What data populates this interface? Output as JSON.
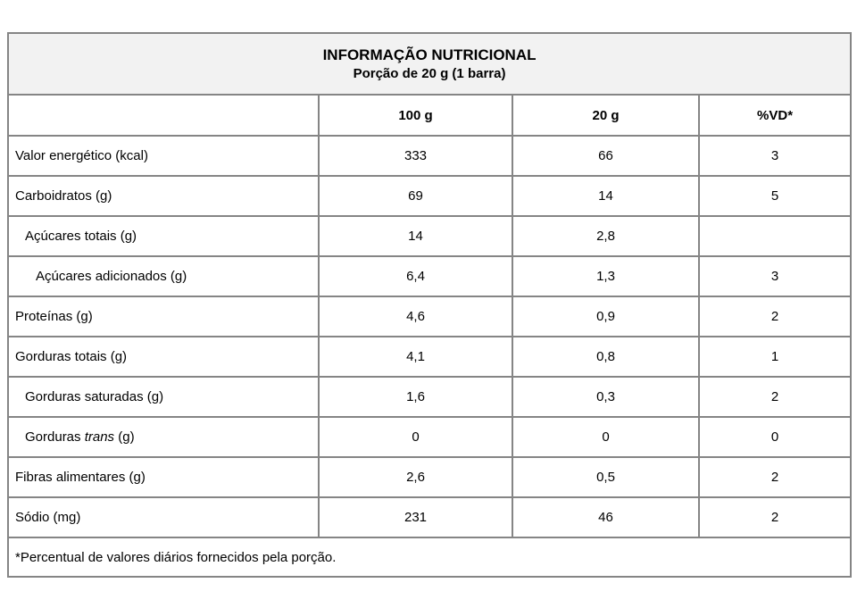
{
  "table": {
    "title": "INFORMAÇÃO NUTRICIONAL",
    "subtitle": "Porção de 20 g (1 barra)",
    "columns": [
      "",
      "100 g",
      "20 g",
      "%VD*"
    ],
    "rows": [
      {
        "label_parts": [
          {
            "text": "Valor energético (kcal)",
            "italic": false
          }
        ],
        "indent": 0,
        "values": [
          "333",
          "66",
          "3"
        ]
      },
      {
        "label_parts": [
          {
            "text": "Carboidratos (g)",
            "italic": false
          }
        ],
        "indent": 0,
        "values": [
          "69",
          "14",
          "5"
        ]
      },
      {
        "label_parts": [
          {
            "text": "Açúcares totais (g)",
            "italic": false
          }
        ],
        "indent": 1,
        "values": [
          "14",
          "2,8",
          ""
        ]
      },
      {
        "label_parts": [
          {
            "text": "Açúcares adicionados (g)",
            "italic": false
          }
        ],
        "indent": 2,
        "values": [
          "6,4",
          "1,3",
          "3"
        ]
      },
      {
        "label_parts": [
          {
            "text": "Proteínas (g)",
            "italic": false
          }
        ],
        "indent": 0,
        "values": [
          "4,6",
          "0,9",
          "2"
        ]
      },
      {
        "label_parts": [
          {
            "text": "Gorduras totais (g)",
            "italic": false
          }
        ],
        "indent": 0,
        "values": [
          "4,1",
          "0,8",
          "1"
        ]
      },
      {
        "label_parts": [
          {
            "text": "Gorduras saturadas (g)",
            "italic": false
          }
        ],
        "indent": 1,
        "values": [
          "1,6",
          "0,3",
          "2"
        ]
      },
      {
        "label_parts": [
          {
            "text": "Gorduras ",
            "italic": false
          },
          {
            "text": "trans",
            "italic": true
          },
          {
            "text": " (g)",
            "italic": false
          }
        ],
        "indent": 1,
        "values": [
          "0",
          "0",
          "0"
        ]
      },
      {
        "label_parts": [
          {
            "text": "Fibras alimentares (g)",
            "italic": false
          }
        ],
        "indent": 0,
        "values": [
          "2,6",
          "0,5",
          "2"
        ]
      },
      {
        "label_parts": [
          {
            "text": "Sódio (mg)",
            "italic": false
          }
        ],
        "indent": 0,
        "values": [
          "231",
          "46",
          "2"
        ]
      }
    ],
    "footnote": "*Percentual de valores diários fornecidos pela porção.",
    "colors": {
      "border": "#858585",
      "title_band_bg": "#f2f2f2",
      "text": "#000000"
    }
  }
}
